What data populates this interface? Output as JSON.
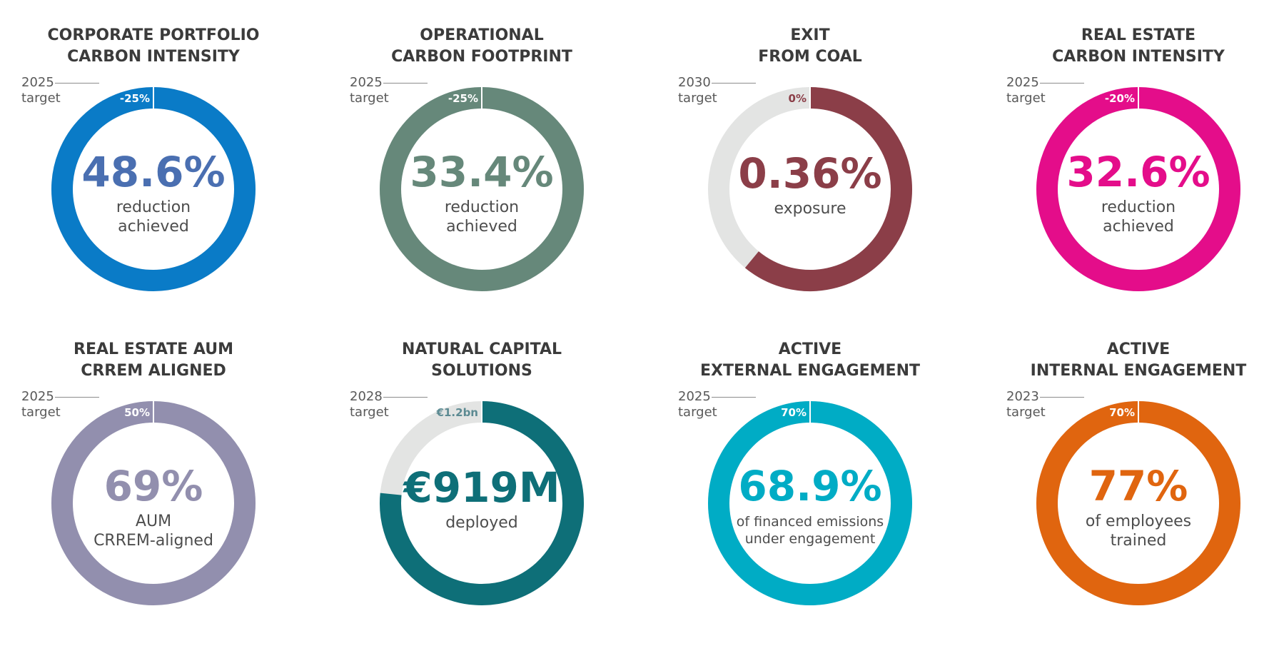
{
  "chart_data": [
    {
      "type": "donut",
      "title": [
        "CORPORATE PORTFOLIO",
        "CARBON INTENSITY"
      ],
      "value_label": "48.6%",
      "caption": [
        "reduction",
        "achieved"
      ],
      "target_year": "2025",
      "target_word": "target",
      "target_label": "-25%",
      "fill_fraction": 1.0,
      "colors": {
        "primary": "#0a7bc7",
        "track": "#e3e4e3",
        "value_text": "#4a6fb1",
        "target_text": "#ffffff"
      }
    },
    {
      "type": "donut",
      "title": [
        "OPERATIONAL",
        "CARBON FOOTPRINT"
      ],
      "value_label": "33.4%",
      "caption": [
        "reduction",
        "achieved"
      ],
      "target_year": "2025",
      "target_word": "target",
      "target_label": "-25%",
      "fill_fraction": 1.0,
      "colors": {
        "primary": "#66887a",
        "track": "#e3e4e3",
        "value_text": "#66887a",
        "target_text": "#ffffff"
      }
    },
    {
      "type": "donut",
      "title": [
        "EXIT",
        "FROM COAL"
      ],
      "value_label": "0.36%",
      "caption": [
        "exposure"
      ],
      "target_year": "2030",
      "target_word": "target",
      "target_label": "0%",
      "fill_fraction": 0.61,
      "colors": {
        "primary": "#8b3e48",
        "track": "#e3e4e3",
        "value_text": "#8b3e48",
        "target_text": "#8b3e48"
      }
    },
    {
      "type": "donut",
      "title": [
        "REAL ESTATE",
        "CARBON INTENSITY"
      ],
      "value_label": "32.6%",
      "caption": [
        "reduction",
        "achieved"
      ],
      "target_year": "2025",
      "target_word": "target",
      "target_label": "-20%",
      "fill_fraction": 1.0,
      "colors": {
        "primary": "#e40d8a",
        "track": "#e3e4e3",
        "value_text": "#e40d8a",
        "target_text": "#ffffff"
      }
    },
    {
      "type": "donut",
      "title": [
        "REAL ESTATE AUM",
        "CRREM ALIGNED"
      ],
      "value_label": "69%",
      "caption": [
        "AUM",
        "CRREM-aligned"
      ],
      "target_year": "2025",
      "target_word": "target",
      "target_label": "50%",
      "fill_fraction": 1.0,
      "colors": {
        "primary": "#928fae",
        "track": "#e3e4e3",
        "value_text": "#928fae",
        "target_text": "#ffffff"
      }
    },
    {
      "type": "donut",
      "title": [
        "NATURAL CAPITAL",
        "SOLUTIONS"
      ],
      "value_label": "€919M",
      "caption": [
        "deployed"
      ],
      "target_year": "2028",
      "target_word": "target",
      "target_label": "€1.2bn",
      "fill_fraction": 0.766,
      "colors": {
        "primary": "#0e6f78",
        "track": "#e3e4e3",
        "value_text": "#0e6f78",
        "target_text": "#5c8a92"
      }
    },
    {
      "type": "donut",
      "title": [
        "ACTIVE",
        "EXTERNAL ENGAGEMENT"
      ],
      "value_label": "68.9%",
      "caption": [
        "of financed emissions",
        "under engagement"
      ],
      "target_year": "2025",
      "target_word": "target",
      "target_label": "70%",
      "fill_fraction": 1.0,
      "colors": {
        "primary": "#00acc5",
        "track": "#e3e4e3",
        "value_text": "#00acc5",
        "target_text": "#ffffff"
      }
    },
    {
      "type": "donut",
      "title": [
        "ACTIVE",
        "INTERNAL ENGAGEMENT"
      ],
      "value_label": "77%",
      "caption": [
        "of employees",
        "trained"
      ],
      "target_year": "2023",
      "target_word": "target",
      "target_label": "70%",
      "fill_fraction": 1.0,
      "colors": {
        "primary": "#e0650f",
        "track": "#e3e4e3",
        "value_text": "#e0650f",
        "target_text": "#ffffff"
      }
    }
  ]
}
